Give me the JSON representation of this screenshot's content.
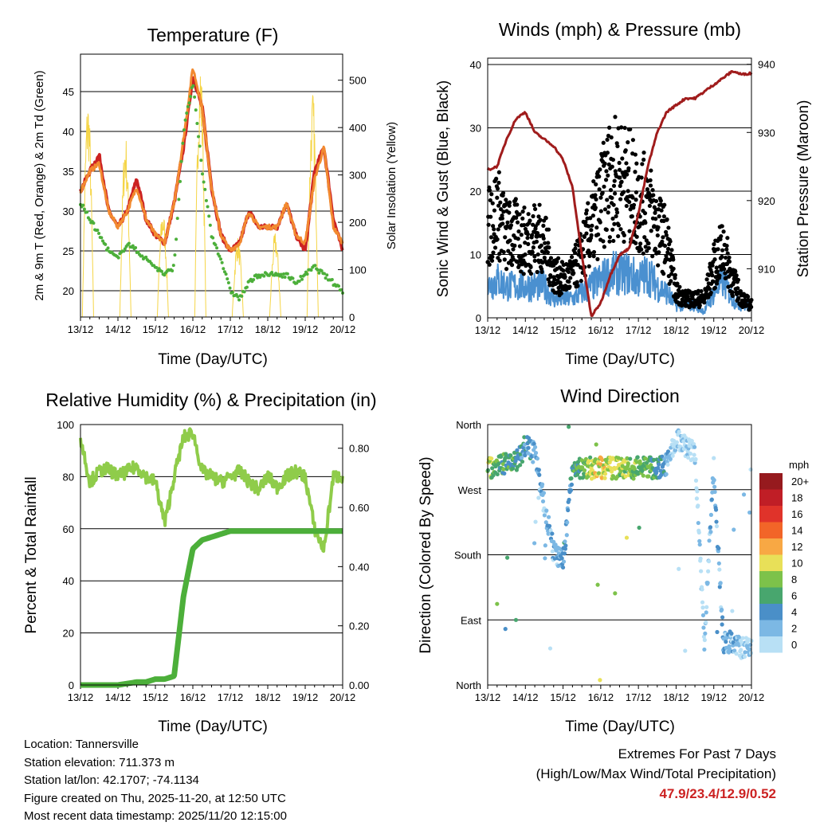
{
  "info": {
    "location": "Location: Tannersville",
    "elevation": "Station elevation: 711.373 m",
    "latlon": "Station lat/lon: 42.1707; -74.1134",
    "created": "Figure created on Thu, 2025-11-20, at 12:50 UTC",
    "recent": "Most recent data timestamp: 2025/11/20 12:15:00"
  },
  "extremes": {
    "title": "Extremes For Past 7 Days",
    "subtitle": "(High/Low/Max Wind/Total Precipitation)",
    "values": "47.9/23.4/12.9/0.52"
  },
  "chart_data": [
    {
      "type": "line",
      "title": "Temperature (F)",
      "xlabel": "Time (Day/UTC)",
      "ylabel": "2m & 9m T (Red, Orange) & 2m Td (Green)",
      "ylabel_right": "Solar Insolation (Yellow)",
      "x_ticks": [
        "13/12",
        "14/12",
        "15/12",
        "16/12",
        "17/12",
        "18/12",
        "19/12",
        "20/12"
      ],
      "y_ticks": [
        "20",
        "25",
        "30",
        "35",
        "40",
        "45"
      ],
      "y_ticks_values": [
        20,
        25,
        30,
        35,
        40,
        45
      ],
      "y_right_ticks": [
        "0",
        "100",
        "200",
        "300",
        "400",
        "500"
      ],
      "y_right_ticks_values": [
        0,
        100,
        200,
        300,
        400,
        500
      ],
      "ylim": [
        16.7,
        49.7
      ],
      "ylim_right": [
        0,
        555
      ],
      "x_step_days": 0.25,
      "series": [
        {
          "name": "2m T",
          "color": "#cc2222",
          "values": [
            32.5,
            35,
            37,
            30,
            28,
            30,
            34,
            29,
            27,
            26,
            31,
            38,
            47,
            43,
            33,
            27,
            25,
            26,
            30,
            28,
            28,
            28,
            31,
            27,
            25,
            35,
            38,
            29,
            25
          ]
        },
        {
          "name": "9m T",
          "color": "#f28a30",
          "values": [
            32.5,
            35,
            36,
            30,
            28,
            30,
            33,
            29,
            27,
            26,
            31,
            39,
            48,
            43,
            33,
            27,
            25,
            26,
            30,
            28,
            28,
            28,
            31,
            27,
            26,
            34,
            38,
            28,
            26
          ]
        },
        {
          "name": "2m Td",
          "color": "#4caf3a",
          "values": [
            31,
            29,
            27,
            25,
            24,
            26,
            25,
            24,
            23,
            22,
            23,
            40,
            46,
            35,
            27,
            24,
            20,
            19,
            21,
            22,
            22,
            22,
            22,
            21,
            22,
            23,
            22,
            21,
            20
          ]
        }
      ],
      "solar": {
        "name": "Solar Insolation",
        "color": "#f5d547",
        "daily_peaks": [
          470,
          390,
          230,
          550,
          170,
          180,
          480
        ],
        "peak_day_fraction": 0.3
      }
    },
    {
      "type": "scatter",
      "title": "Winds (mph) & Pressure (mb)",
      "xlabel": "Time (Day/UTC)",
      "ylabel": "Sonic Wind & Gust (Blue, Black)",
      "ylabel_right": "Station Pressure (Maroon)",
      "x_ticks": [
        "13/12",
        "14/12",
        "15/12",
        "16/12",
        "17/12",
        "18/12",
        "19/12",
        "20/12"
      ],
      "y_ticks": [
        "0",
        "10",
        "20",
        "30",
        "40"
      ],
      "y_ticks_values": [
        0,
        10,
        20,
        30,
        40
      ],
      "y_right_ticks": [
        "910",
        "920",
        "930",
        "940"
      ],
      "y_right_ticks_values": [
        910,
        920,
        930,
        940
      ],
      "ylim": [
        0,
        41
      ],
      "ylim_right": [
        902.8,
        940.9
      ],
      "x_step_days": 0.25,
      "series": [
        {
          "name": "Sonic Wind",
          "color": "#4a90d0",
          "values": [
            5,
            6,
            5,
            5,
            5,
            5,
            5,
            3,
            3,
            3,
            4,
            5,
            6,
            7,
            7,
            7,
            6,
            7,
            5,
            4,
            2,
            2,
            2,
            1,
            4,
            6,
            3,
            2,
            2
          ]
        },
        {
          "name": "Gust",
          "color": "#000000",
          "values": [
            14,
            17,
            13,
            13,
            12,
            13,
            12,
            7,
            6,
            7,
            10,
            14,
            18,
            22,
            22,
            21,
            18,
            18,
            14,
            12,
            4,
            3,
            3,
            3,
            8,
            11,
            6,
            3,
            2
          ]
        },
        {
          "name": "Station Pressure",
          "color": "#a01c1c",
          "values": [
            924.5,
            925,
            929,
            932,
            933,
            930,
            929,
            928,
            926,
            922,
            912,
            903,
            905,
            909,
            912,
            913,
            918,
            925,
            930,
            933,
            934,
            935,
            935,
            936,
            937,
            938,
            939,
            938.5,
            938.7
          ]
        }
      ]
    },
    {
      "type": "line",
      "title": "Relative Humidity (%) & Precipitation (in)",
      "xlabel": "Time (Day/UTC)",
      "ylabel": "Percent & Total Rainfall",
      "x_ticks": [
        "13/12",
        "14/12",
        "15/12",
        "16/12",
        "17/12",
        "18/12",
        "19/12",
        "20/12"
      ],
      "y_ticks": [
        "0",
        "20",
        "40",
        "60",
        "80",
        "100"
      ],
      "y_ticks_values": [
        0,
        20,
        40,
        60,
        80,
        100
      ],
      "y_right_ticks": [
        "0.00",
        "0.20",
        "0.40",
        "0.60",
        "0.80"
      ],
      "y_right_ticks_values": [
        0,
        0.2,
        0.4,
        0.6,
        0.8
      ],
      "ylim": [
        0,
        100
      ],
      "ylim_right": [
        0,
        0.88
      ],
      "x_step_days": 0.25,
      "series": [
        {
          "name": "Relative Humidity",
          "color": "#8fcc4a",
          "values": [
            95,
            78,
            82,
            83,
            80,
            82,
            84,
            80,
            78,
            62,
            80,
            95,
            97,
            82,
            80,
            78,
            80,
            82,
            78,
            75,
            80,
            76,
            80,
            82,
            80,
            60,
            52,
            80,
            80
          ]
        },
        {
          "name": "Total Precipitation",
          "color": "#4caf3a",
          "values": [
            0,
            0,
            0,
            0,
            0,
            0.005,
            0.01,
            0.01,
            0.02,
            0.02,
            0.03,
            0.3,
            0.46,
            0.49,
            0.5,
            0.51,
            0.52,
            0.52,
            0.52,
            0.52,
            0.52,
            0.52,
            0.52,
            0.52,
            0.52,
            0.52,
            0.52,
            0.52,
            0.52
          ]
        }
      ]
    },
    {
      "type": "scatter",
      "title": "Wind Direction",
      "xlabel": "Time (Day/UTC)",
      "ylabel": "Direction (Colored By Speed)",
      "x_ticks": [
        "13/12",
        "14/12",
        "15/12",
        "16/12",
        "17/12",
        "18/12",
        "19/12",
        "20/12"
      ],
      "y_ticks": [
        "North",
        "West",
        "South",
        "East",
        "North"
      ],
      "y_ticks_values": [
        360,
        270,
        180,
        90,
        0
      ],
      "ylim": [
        0,
        360
      ],
      "x_step_days": 0.25,
      "direction": [
        300,
        302,
        305,
        310,
        330,
        320,
        250,
        185,
        170,
        300,
        300,
        300,
        300,
        300,
        300,
        300,
        300,
        300,
        300,
        305,
        340,
        330,
        320,
        60,
        300,
        60,
        60,
        50,
        50
      ],
      "speed": [
        9,
        8,
        7,
        7,
        5,
        4,
        3,
        3,
        4,
        6,
        8,
        10,
        11,
        10,
        10,
        9,
        8,
        8,
        6,
        4,
        1,
        1,
        1,
        2,
        3,
        4,
        3,
        2,
        2
      ],
      "legend": {
        "title": "mph",
        "labels": [
          "20+",
          "18",
          "16",
          "14",
          "12",
          "10",
          "8",
          "6",
          "4",
          "2",
          "0"
        ],
        "colors": [
          "#961a1e",
          "#c01e26",
          "#e0332a",
          "#f26528",
          "#f8a844",
          "#e8e058",
          "#7dc24a",
          "#48a66e",
          "#4a8fc8",
          "#7cb8e4",
          "#b8e0f5"
        ]
      }
    }
  ]
}
